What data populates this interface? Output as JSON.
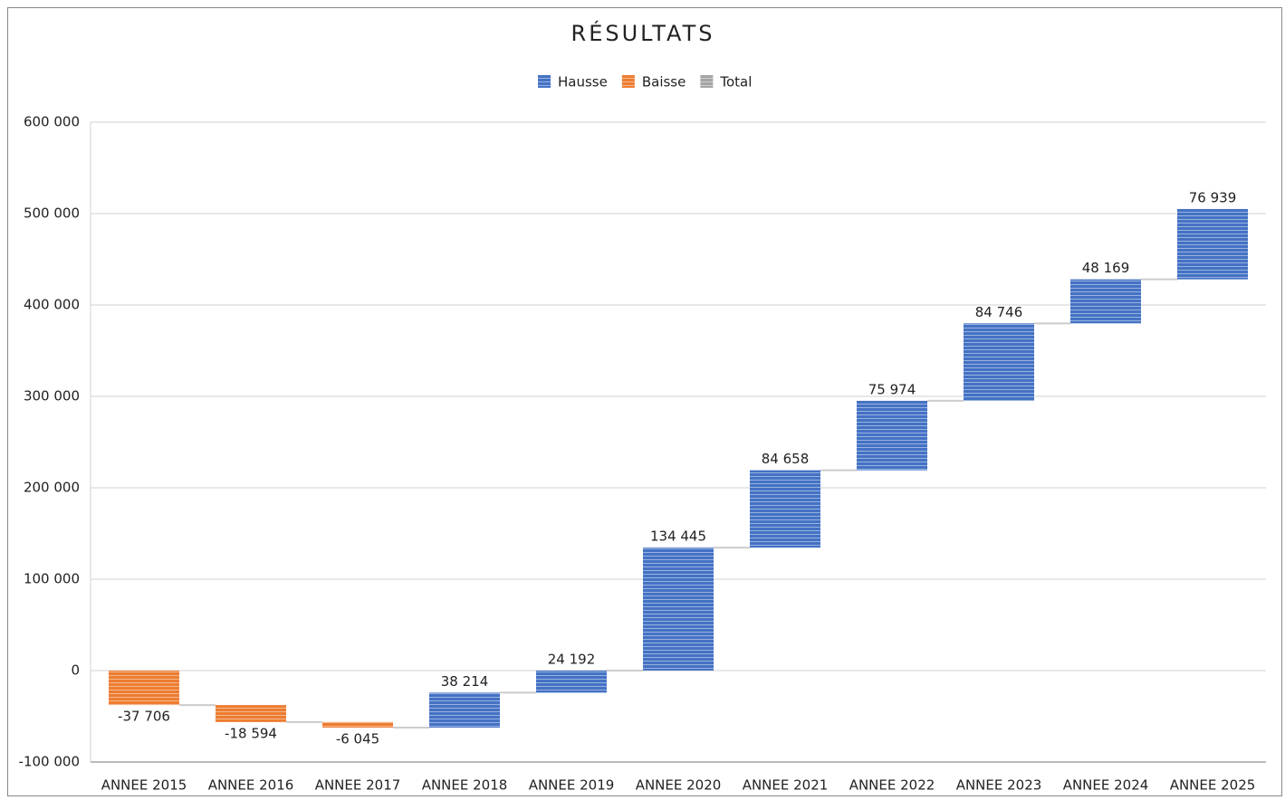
{
  "chart_data": {
    "type": "waterfall",
    "title": "RÉSULTATS",
    "legend": [
      {
        "name": "Hausse",
        "color": "#4472c4"
      },
      {
        "name": "Baisse",
        "color": "#ed7d31"
      },
      {
        "name": "Total",
        "color": "#a5a5a5"
      }
    ],
    "categories": [
      "ANNEE 2015",
      "ANNEE 2016",
      "ANNEE 2017",
      "ANNEE 2018",
      "ANNEE 2019",
      "ANNEE 2020",
      "ANNEE 2021",
      "ANNEE 2022",
      "ANNEE 2023",
      "ANNEE 2024",
      "ANNEE 2025"
    ],
    "values": [
      -37706,
      -18594,
      -6045,
      38214,
      24192,
      134445,
      84658,
      75974,
      84746,
      48169,
      76939
    ],
    "value_labels": [
      "-37 706",
      "-18 594",
      "-6 045",
      "38 214",
      "24 192",
      "134 445",
      "84 658",
      "75 974",
      "84 746",
      "48 169",
      "76 939"
    ],
    "ylim": [
      -100000,
      600000
    ],
    "yticks": [
      {
        "value": -100000,
        "label": "-100 000"
      },
      0,
      {
        "value": 100000,
        "label": "100 000"
      },
      {
        "value": 200000,
        "label": "200 000"
      },
      {
        "value": 300000,
        "label": "300 000"
      },
      {
        "value": 400000,
        "label": "400 000"
      },
      {
        "value": 500000,
        "label": "500 000"
      },
      {
        "value": 600000,
        "label": "600 000"
      }
    ],
    "grid": true
  }
}
